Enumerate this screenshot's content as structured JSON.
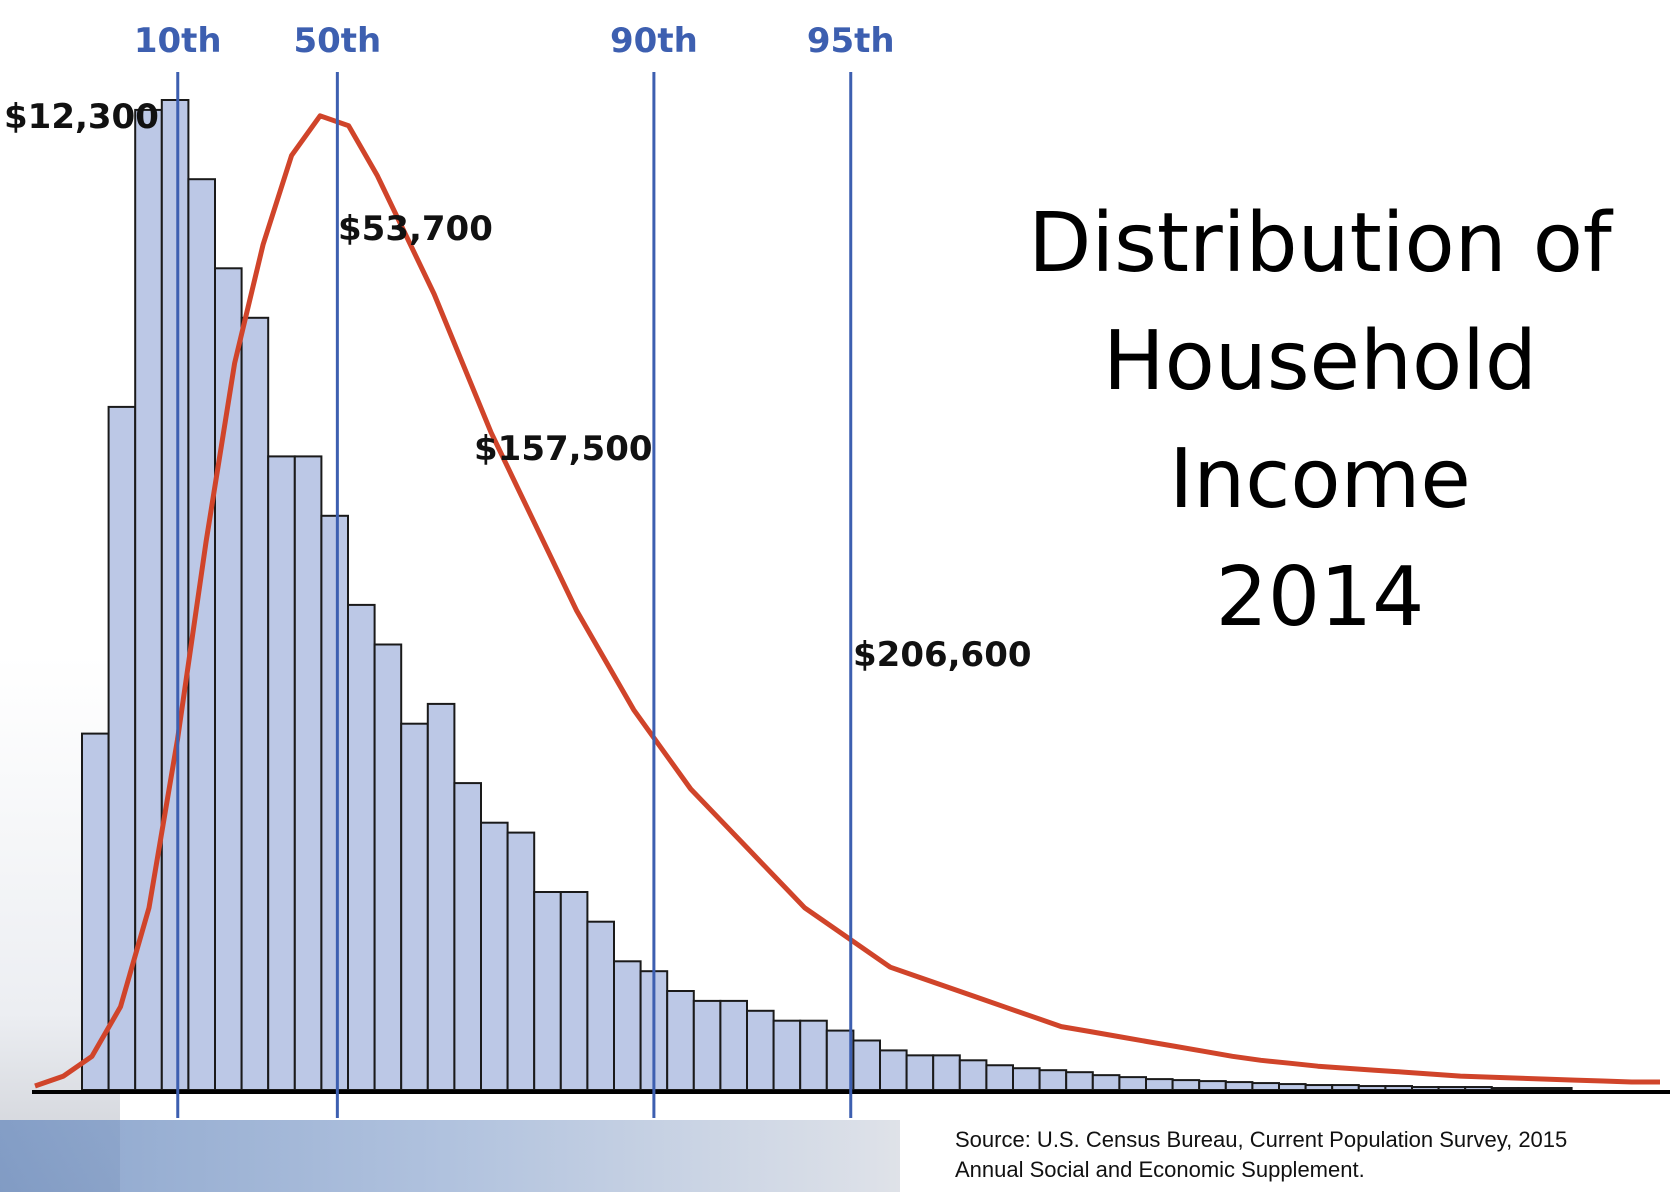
{
  "title_lines": [
    "Distribution of",
    "Household",
    "Income",
    "2014"
  ],
  "source_lines": [
    "Source: U.S. Census Bureau, Current Population Survey, 2015",
    "Annual Social and Economic Supplement."
  ],
  "chart_data": {
    "type": "bar",
    "title": "Distribution of Household Income 2014",
    "xlabel": "",
    "ylabel": "",
    "bar_heights_relative": [
      36,
      69,
      99,
      100,
      92,
      83,
      78,
      64,
      64,
      58,
      49,
      45,
      37,
      39,
      31,
      27,
      26,
      20,
      20,
      17,
      13,
      12,
      10,
      9,
      9,
      8,
      7,
      7,
      6,
      5,
      4,
      3.5,
      3.5,
      3,
      2.5,
      2.2,
      2,
      1.8,
      1.5,
      1.3,
      1.1,
      1,
      0.9,
      0.8,
      0.7,
      0.6,
      0.5,
      0.5,
      0.4,
      0.4,
      0.3,
      0.3,
      0.3,
      0.2,
      0.2,
      0.2
    ],
    "density_curve_relative": [
      0,
      1,
      3,
      8,
      18,
      35,
      55,
      73,
      85,
      94,
      98,
      97,
      92,
      86,
      80,
      73,
      66,
      60,
      54,
      48,
      43,
      38,
      34,
      30,
      27,
      24,
      21,
      18,
      16,
      14,
      12,
      11,
      10,
      9,
      8,
      7,
      6,
      5.5,
      5,
      4.5,
      4,
      3.5,
      3,
      2.6,
      2.3,
      2,
      1.8,
      1.6,
      1.4,
      1.2,
      1,
      0.9,
      0.8,
      0.7,
      0.6,
      0.5,
      0.4,
      0.4
    ],
    "percentiles": [
      {
        "label": "10th",
        "bin_position": 3.6,
        "value_label": "$12,300"
      },
      {
        "label": "50th",
        "bin_position": 9.6,
        "value_label": "$53,700"
      },
      {
        "label": "90th",
        "bin_position": 21.5,
        "value_label": "$157,500"
      },
      {
        "label": "95th",
        "bin_position": 28.9,
        "value_label": "$206,600"
      }
    ],
    "colors": {
      "bar_fill": "#bcc8e6",
      "bar_stroke": "#1a1a1a",
      "curve": "#d0442a",
      "percentile_line": "#3d5fb0"
    }
  }
}
